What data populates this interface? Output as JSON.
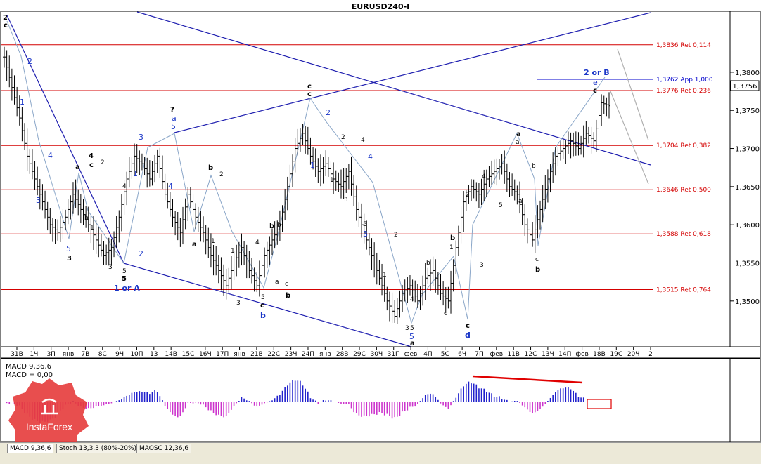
{
  "chart_title": "EURUSD240-I",
  "price_axis": {
    "ticks": [
      "1,3800",
      "1,3750",
      "1,3700",
      "1,3650",
      "1,3600",
      "1,3550",
      "1,3500"
    ],
    "tick_values": [
      1.38,
      1.375,
      1.37,
      1.365,
      1.36,
      1.355,
      1.35
    ],
    "current_price": "1,3756",
    "current_value": 1.3756
  },
  "date_axis": [
    "31B",
    "1Ч",
    "3П",
    "янв",
    "7В",
    "8С",
    "9Ч",
    "10П",
    "13",
    "14В",
    "15С",
    "16Ч",
    "17П",
    "янв",
    "21В",
    "22С",
    "23Ч",
    "24П",
    "янв",
    "28В",
    "29С",
    "30Ч",
    "31П",
    "фев",
    "4П",
    "5С",
    "6Ч",
    "7П",
    "фев",
    "11В",
    "12С",
    "13Ч",
    "14П",
    "фев",
    "18В",
    "19С",
    "20Ч",
    "2"
  ],
  "fib_levels": [
    {
      "label": "1,3836 Ret 0,114",
      "value": 1.3836
    },
    {
      "label": "1,3776 Ret 0,236",
      "value": 1.3776
    },
    {
      "label": "1,3704 Ret 0,382",
      "value": 1.3704
    },
    {
      "label": "1,3646 Ret 0,500",
      "value": 1.3646
    },
    {
      "label": "1,3588 Ret 0,618",
      "value": 1.3588
    },
    {
      "label": "1,3515 Ret 0,764",
      "value": 1.3515
    }
  ],
  "app_level": {
    "label": "1,3762 App 1,000",
    "value": 1.3762
  },
  "wave_labels": {
    "bold_black": [
      "2",
      "c",
      "4",
      "c",
      "a",
      "5",
      "3",
      "b",
      "a",
      "b",
      "c",
      "b",
      "c",
      "a",
      "b",
      "c",
      "b",
      "a",
      "c",
      "e",
      "c",
      "b",
      "a",
      "c",
      "a",
      "d",
      "?"
    ],
    "small_black": [
      "b",
      "1",
      "2",
      "3",
      "4",
      "5",
      "1",
      "2",
      "3",
      "4",
      "5",
      "1",
      "2",
      "3",
      "4",
      "5",
      "a",
      "b",
      "c",
      "1",
      "2",
      "3",
      "4",
      "5",
      "1",
      "2",
      "3",
      "4",
      "5",
      "a",
      "b",
      "c",
      "1",
      "2",
      "3",
      "4",
      "5",
      "b",
      "b",
      "a",
      "c",
      "4",
      "c",
      "a"
    ],
    "blue": [
      "2",
      "1",
      "4",
      "3",
      "5",
      "3",
      "1",
      "2",
      "4",
      "5",
      "a",
      "2",
      "1",
      "4",
      "3",
      "5",
      "4",
      "5"
    ],
    "blue_bold": [
      "1 or A",
      "2 or B",
      "b",
      "c",
      "d",
      "e"
    ]
  },
  "indicator": {
    "line1": "MACD 9,36,6",
    "line2": "MACD = 0,00"
  },
  "tabs": [
    "MACD 9,36,6",
    "Stoch 13,3,3 (80%-20%)",
    "MAOSC 12,36,6"
  ],
  "logo_text": "InstaForex",
  "colors": {
    "fib": "#d40000",
    "channel": "#2020b0",
    "wave_path": "#8aa6c8",
    "macd_pos": "#2020cc",
    "macd_neg": "#cc33cc",
    "divergence": "#e00000",
    "logo": "#e63b3b"
  },
  "chart_data": {
    "type": "line",
    "title": "EURUSD240-I",
    "xlabel": "",
    "ylabel": "",
    "ylim": [
      1.344,
      1.388
    ],
    "series": [
      {
        "values": [
          1.382,
          1.378,
          1.374,
          1.369,
          1.366,
          1.363,
          1.36,
          1.359,
          1.361,
          1.364,
          1.362,
          1.36,
          1.358,
          1.356,
          1.357,
          1.361,
          1.366,
          1.369,
          1.368,
          1.366,
          1.369,
          1.364,
          1.361,
          1.359,
          1.364,
          1.361,
          1.359,
          1.356,
          1.354,
          1.352,
          1.355,
          1.357,
          1.354,
          1.352,
          1.356,
          1.358,
          1.36,
          1.365,
          1.37,
          1.372,
          1.369,
          1.367,
          1.368,
          1.366,
          1.365,
          1.367,
          1.362,
          1.359,
          1.356,
          1.353,
          1.35,
          1.348,
          1.351,
          1.352,
          1.35,
          1.353,
          1.354,
          1.351,
          1.35,
          1.357,
          1.363,
          1.365,
          1.364,
          1.366,
          1.367,
          1.368,
          1.365,
          1.364,
          1.36,
          1.358,
          1.362,
          1.366,
          1.369,
          1.37,
          1.371,
          1.37,
          1.372,
          1.371,
          1.376,
          1.3756
        ]
      }
    ]
  }
}
